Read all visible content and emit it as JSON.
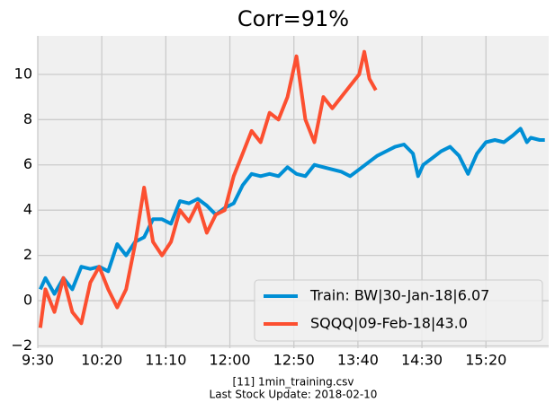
{
  "chart_data": {
    "type": "line",
    "title": "Corr=91%",
    "footer": [
      "[11] 1min_training.csv",
      "Last Stock Update: 2018-02-10"
    ],
    "xlim": [
      570,
      969
    ],
    "xticks": [
      {
        "value": 570,
        "label": "9:30"
      },
      {
        "value": 620,
        "label": "10:20"
      },
      {
        "value": 670,
        "label": "11:10"
      },
      {
        "value": 720,
        "label": "12:00"
      },
      {
        "value": 770,
        "label": "12:50"
      },
      {
        "value": 820,
        "label": "13:40"
      },
      {
        "value": 870,
        "label": "14:30"
      },
      {
        "value": 920,
        "label": "15:20"
      }
    ],
    "ylim": [
      -2.1,
      11.7
    ],
    "yticks": [
      {
        "value": -2,
        "label": "−2"
      },
      0,
      2,
      4,
      6,
      8,
      10
    ],
    "grid": true,
    "legend": "lower right",
    "series": [
      {
        "name": "Train: BW|30-Jan-18|6.07",
        "color": "#008fd5",
        "x": [
          572,
          576,
          583,
          590,
          597,
          604,
          611,
          618,
          625,
          632,
          639,
          646,
          653,
          660,
          667,
          674,
          681,
          688,
          695,
          702,
          709,
          716,
          723,
          730,
          737,
          744,
          751,
          758,
          765,
          772,
          779,
          786,
          793,
          800,
          807,
          814,
          821,
          828,
          835,
          842,
          849,
          856,
          863,
          867,
          871,
          878,
          885,
          892,
          899,
          906,
          913,
          920,
          927,
          934,
          941,
          947,
          952,
          955,
          962,
          966
        ],
        "values": [
          0.5,
          1.0,
          0.3,
          1.0,
          0.5,
          1.5,
          1.4,
          1.5,
          1.3,
          2.5,
          2.0,
          2.6,
          2.8,
          3.6,
          3.6,
          3.4,
          4.4,
          4.3,
          4.5,
          4.2,
          3.8,
          4.1,
          4.3,
          5.1,
          5.6,
          5.5,
          5.6,
          5.5,
          5.9,
          5.6,
          5.5,
          6.0,
          5.9,
          5.8,
          5.7,
          5.5,
          5.8,
          6.1,
          6.4,
          6.6,
          6.8,
          6.9,
          6.5,
          5.5,
          6.0,
          6.3,
          6.6,
          6.8,
          6.4,
          5.6,
          6.5,
          7.0,
          7.1,
          7.0,
          7.3,
          7.6,
          7.0,
          7.2,
          7.1,
          7.1
        ]
      },
      {
        "name": "SQQQ|09-Feb-18|43.0",
        "color": "#fc4f30",
        "x": [
          572,
          576,
          583,
          590,
          597,
          604,
          611,
          618,
          625,
          632,
          639,
          646,
          653,
          660,
          667,
          674,
          681,
          688,
          695,
          702,
          709,
          716,
          723,
          730,
          737,
          744,
          751,
          758,
          765,
          772,
          779,
          786,
          793,
          800,
          807,
          814,
          821,
          825,
          829,
          834
        ],
        "values": [
          -1.2,
          0.5,
          -0.5,
          1.0,
          -0.5,
          -1.0,
          0.8,
          1.5,
          0.5,
          -0.3,
          0.5,
          2.5,
          5.0,
          2.6,
          2.0,
          2.6,
          4.0,
          3.5,
          4.3,
          3.0,
          3.8,
          4.0,
          5.5,
          6.5,
          7.5,
          7.0,
          8.3,
          8.0,
          9.0,
          10.8,
          8.0,
          7.0,
          9.0,
          8.5,
          9.0,
          9.5,
          10.0,
          11.0,
          9.8,
          9.3
        ]
      }
    ]
  }
}
